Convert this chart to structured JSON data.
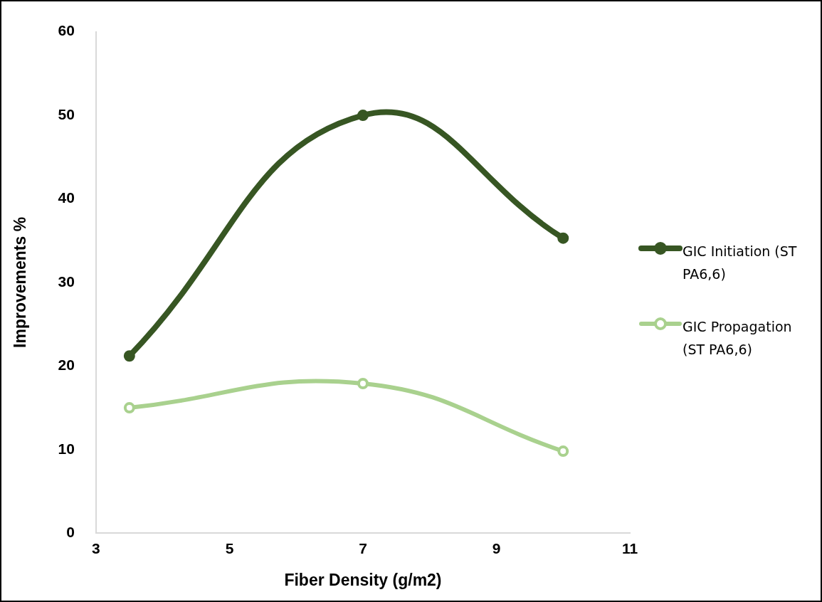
{
  "chart_data": {
    "type": "line",
    "xlabel": "Fiber Density (g/m2)",
    "ylabel": "Improvements %",
    "series": [
      {
        "name": "GIC Initiation (ST PA6,6)",
        "color": "#375623",
        "x": [
          3.5,
          7,
          10
        ],
        "values": [
          21.2,
          50,
          35.3
        ]
      },
      {
        "name": "GIC Propagation (ST PA6,6)",
        "color": "#a9d18e",
        "x": [
          3.5,
          7,
          10
        ],
        "values": [
          15,
          17.9,
          9.8
        ]
      }
    ],
    "xlim": [
      3,
      11
    ],
    "xticks": [
      3,
      5,
      7,
      9,
      11
    ],
    "ylim": [
      0,
      60
    ],
    "yticks": [
      0,
      10,
      20,
      30,
      40,
      50,
      60
    ],
    "grid": false,
    "legend": "right",
    "marker": "circle",
    "line_style": "solid"
  }
}
